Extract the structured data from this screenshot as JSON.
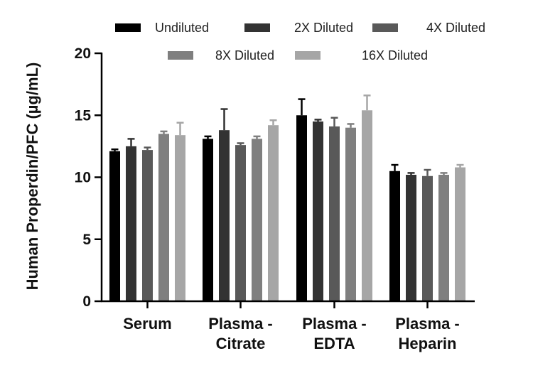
{
  "chart_data": {
    "type": "bar",
    "title": "",
    "xlabel": "",
    "ylabel": "Human Properdin/PFC (µg/mL)",
    "ylim": [
      0,
      20
    ],
    "yticks": [
      0,
      5,
      10,
      15,
      20
    ],
    "grid": false,
    "legend_position": "top",
    "categories": [
      [
        "Serum"
      ],
      [
        "Plasma -",
        "Citrate"
      ],
      [
        "Plasma -",
        "EDTA"
      ],
      [
        "Plasma -",
        "Heparin"
      ]
    ],
    "series": [
      {
        "name": "Undiluted",
        "color": "#000000",
        "values": [
          12.1,
          13.1,
          15.0,
          10.5
        ],
        "errors": [
          0.15,
          0.2,
          1.3,
          0.5
        ]
      },
      {
        "name": "2X Diluted",
        "color": "#333333",
        "values": [
          12.5,
          13.8,
          14.5,
          10.2
        ],
        "errors": [
          0.6,
          1.7,
          0.15,
          0.15
        ]
      },
      {
        "name": "4X Diluted",
        "color": "#595959",
        "values": [
          12.2,
          12.6,
          14.1,
          10.1
        ],
        "errors": [
          0.2,
          0.15,
          0.7,
          0.5
        ]
      },
      {
        "name": "8X Diluted",
        "color": "#7f7f7f",
        "values": [
          13.5,
          13.1,
          14.0,
          10.2
        ],
        "errors": [
          0.2,
          0.2,
          0.3,
          0.15
        ]
      },
      {
        "name": "16X Diluted",
        "color": "#a6a6a6",
        "values": [
          13.4,
          14.2,
          15.4,
          10.8
        ],
        "errors": [
          1.0,
          0.4,
          1.2,
          0.2
        ]
      }
    ]
  }
}
